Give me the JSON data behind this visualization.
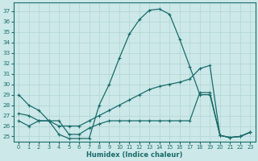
{
  "xlabel": "Humidex (Indice chaleur)",
  "bg_color": "#cce8e8",
  "line_color": "#1a6b6b",
  "grid_color": "#b0d4d4",
  "ylim": [
    24.5,
    37.8
  ],
  "xlim": [
    -0.5,
    23.5
  ],
  "y_ticks": [
    25,
    26,
    27,
    28,
    29,
    30,
    31,
    32,
    33,
    34,
    35,
    36,
    37
  ],
  "x_ticks": [
    0,
    1,
    2,
    3,
    4,
    5,
    6,
    7,
    8,
    9,
    10,
    11,
    12,
    13,
    14,
    15,
    16,
    17,
    18,
    19,
    20,
    21,
    22,
    23
  ],
  "s1_x": [
    0,
    1,
    2,
    3,
    4,
    5,
    6,
    7,
    8,
    9,
    10,
    11,
    12,
    13,
    14,
    15,
    16,
    17,
    18,
    19,
    20,
    21,
    22,
    23
  ],
  "s1_y": [
    29.0,
    28.0,
    27.5,
    26.5,
    25.2,
    24.8,
    24.8,
    24.8,
    28.0,
    30.0,
    32.5,
    34.8,
    36.2,
    37.1,
    37.2,
    36.7,
    34.3,
    31.7,
    29.0,
    29.0,
    25.1,
    24.9,
    25.0,
    25.4
  ],
  "s2_x": [
    0,
    1,
    2,
    3,
    4,
    5,
    6,
    7,
    8,
    9,
    10,
    11,
    12,
    13,
    14,
    15,
    16,
    17,
    18,
    19,
    20,
    21,
    22,
    23
  ],
  "s2_y": [
    27.2,
    27.0,
    26.5,
    26.5,
    26.0,
    26.0,
    26.0,
    26.5,
    27.0,
    27.5,
    28.0,
    28.5,
    29.0,
    29.5,
    29.8,
    30.0,
    30.2,
    30.5,
    31.5,
    31.8,
    25.1,
    24.9,
    25.0,
    25.4
  ],
  "s3_x": [
    0,
    1,
    2,
    3,
    4,
    5,
    6,
    7,
    8,
    9,
    10,
    11,
    12,
    13,
    14,
    15,
    16,
    17,
    18,
    19,
    20,
    21,
    22,
    23
  ],
  "s3_y": [
    26.5,
    26.0,
    26.5,
    26.5,
    26.5,
    25.2,
    25.2,
    25.8,
    26.2,
    26.5,
    26.5,
    26.5,
    26.5,
    26.5,
    26.5,
    26.5,
    26.5,
    26.5,
    29.2,
    29.2,
    25.1,
    24.9,
    25.0,
    25.4
  ]
}
